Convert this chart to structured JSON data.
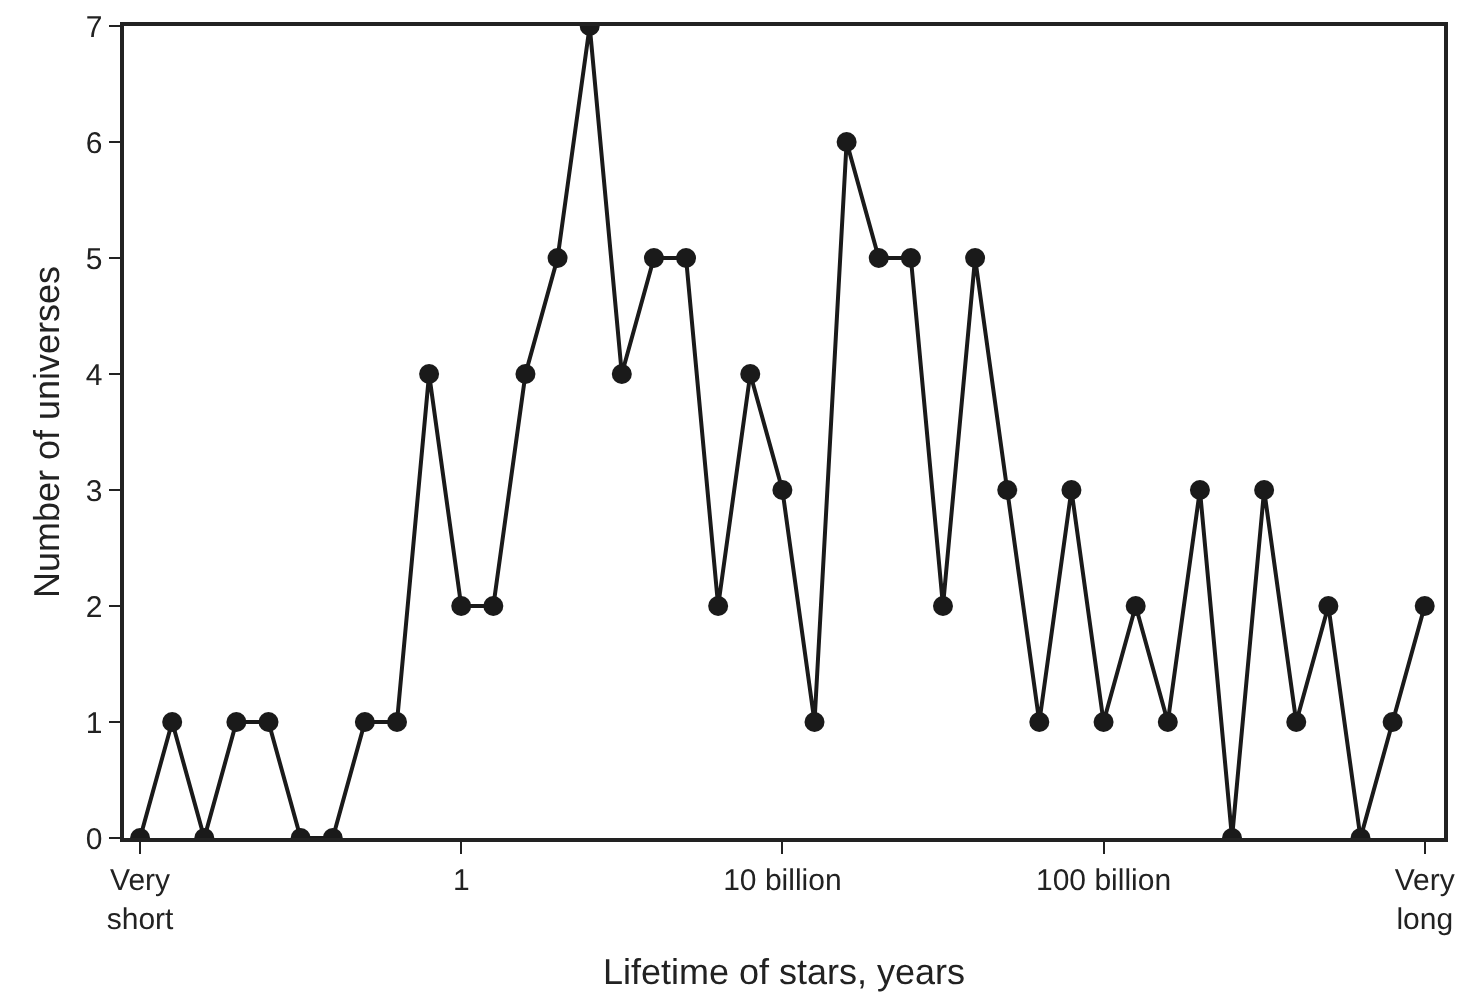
{
  "chart_data": {
    "type": "line",
    "xlabel": "Lifetime of stars, years",
    "ylabel": "Number of universes",
    "categories": [
      "Very\nshort",
      null,
      null,
      null,
      null,
      null,
      null,
      null,
      null,
      null,
      "1",
      null,
      null,
      null,
      null,
      null,
      null,
      null,
      null,
      null,
      "10 billion",
      null,
      null,
      null,
      null,
      null,
      null,
      null,
      null,
      null,
      "100 billion",
      null,
      null,
      null,
      null,
      null,
      null,
      null,
      null,
      null,
      "Very\nlong"
    ],
    "series": [
      {
        "color": "#1a1a1a",
        "values": [
          0,
          1,
          0,
          1,
          1,
          0,
          0,
          1,
          1,
          4,
          2,
          2,
          4,
          5,
          7,
          4,
          5,
          5,
          2,
          4,
          3,
          1,
          6,
          5,
          5,
          2,
          5,
          3,
          1,
          3,
          1,
          2,
          1,
          3,
          0,
          3,
          1,
          2,
          0,
          1,
          2
        ]
      }
    ],
    "ylim": [
      0,
      7
    ],
    "yticks": [
      0,
      1,
      2,
      3,
      4,
      5,
      6,
      7
    ],
    "grid": false,
    "marker": "circle",
    "line_style": "solid"
  }
}
